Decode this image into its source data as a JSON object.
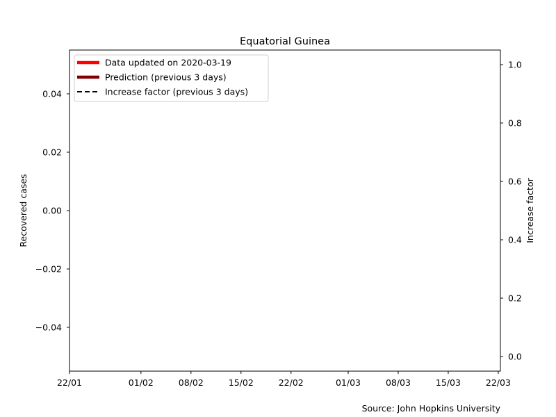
{
  "chart_data": {
    "type": "line",
    "title": "Equatorial Guinea",
    "ylabel": "Recovered cases",
    "ylabel_right": "Increase factor",
    "source": "Source: John Hopkins University",
    "x_ticks": [
      "22/01",
      "01/02",
      "08/02",
      "15/02",
      "22/02",
      "01/03",
      "08/03",
      "15/03",
      "22/03"
    ],
    "x_tick_days": [
      0,
      10,
      17,
      24,
      31,
      39,
      46,
      53,
      60
    ],
    "xlim_days": [
      0,
      60.3
    ],
    "ylim_left": [
      -0.055,
      0.055
    ],
    "y_ticks_left": [
      "0.04",
      "0.02",
      "0.00",
      "−0.02",
      "−0.04"
    ],
    "y_tick_values_left": [
      0.04,
      0.02,
      0.0,
      -0.02,
      -0.04
    ],
    "ylim_right": [
      -0.05,
      1.05
    ],
    "y_ticks_right": [
      "1.0",
      "0.8",
      "0.6",
      "0.4",
      "0.2",
      "0.0"
    ],
    "y_tick_values_right": [
      1.0,
      0.8,
      0.6,
      0.4,
      0.2,
      0.0
    ],
    "grid": false,
    "legend_position": "top-left",
    "series": [
      {
        "name": "Data updated on 2020-03-19",
        "color": "#ff0000",
        "style": "solid",
        "values": []
      },
      {
        "name": "Prediction (previous 3 days)",
        "color": "#800000",
        "style": "solid",
        "values": []
      },
      {
        "name": "Increase factor (previous 3 days)",
        "color": "#000000",
        "style": "dashed",
        "values": []
      }
    ]
  }
}
